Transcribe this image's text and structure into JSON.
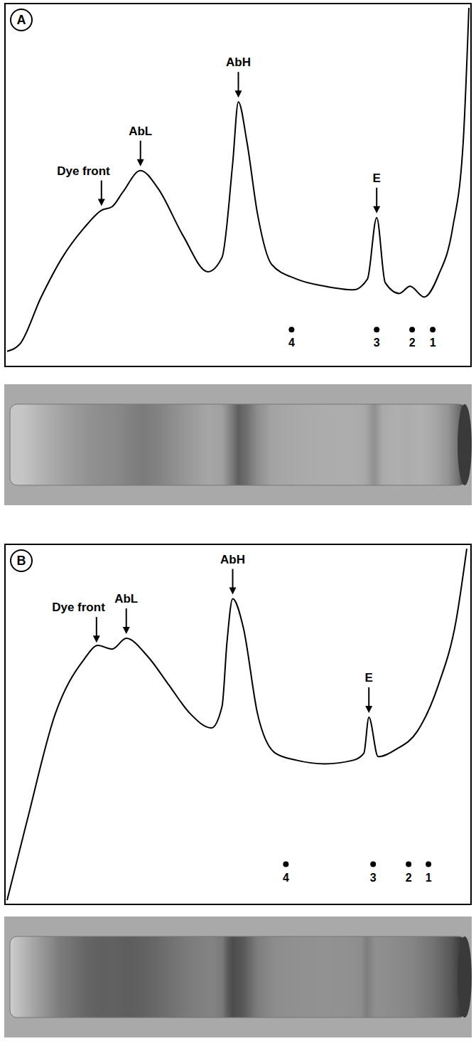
{
  "chart_data": [
    {
      "type": "line",
      "panel": "A",
      "color": "#000000",
      "xlim": [
        0,
        655
      ],
      "ylim": [
        0,
        100
      ],
      "tick_labels": false,
      "x": [
        2,
        20,
        50,
        80,
        110,
        135,
        150,
        165,
        190,
        215,
        250,
        285,
        305,
        320,
        328,
        340,
        355,
        375,
        410,
        450,
        490,
        510,
        523,
        535,
        555,
        570,
        590,
        610,
        630,
        645,
        653
      ],
      "values": [
        4,
        6,
        19,
        30,
        38,
        43,
        44,
        48,
        54,
        49,
        36,
        26,
        30,
        56,
        73,
        62,
        42,
        28,
        24,
        22,
        21,
        24,
        41,
        23,
        20,
        22,
        19,
        25,
        38,
        62,
        99
      ],
      "annotations": [
        {
          "text": "Dye front",
          "x": 135
        },
        {
          "text": "AbL",
          "x": 190
        },
        {
          "text": "AbH",
          "x": 328
        },
        {
          "text": "E",
          "x": 523
        }
      ],
      "points": [
        {
          "text": "4",
          "x": 403,
          "y": 10
        },
        {
          "text": "3",
          "x": 523,
          "y": 10
        },
        {
          "text": "2",
          "x": 573,
          "y": 10
        },
        {
          "text": "1",
          "x": 602,
          "y": 10
        }
      ]
    },
    {
      "type": "line",
      "panel": "B",
      "color": "#000000",
      "xlim": [
        0,
        655
      ],
      "ylim": [
        0,
        100
      ],
      "tick_labels": false,
      "x": [
        2,
        30,
        70,
        110,
        130,
        150,
        170,
        200,
        230,
        260,
        290,
        305,
        312,
        320,
        335,
        355,
        380,
        410,
        450,
        490,
        505,
        512,
        525,
        550,
        580,
        610,
        635,
        650
      ],
      "values": [
        1,
        23,
        53,
        68,
        72,
        71,
        74,
        69,
        61,
        53,
        49,
        55,
        73,
        85,
        77,
        53,
        42,
        40,
        39,
        40,
        42,
        52,
        41,
        43,
        48,
        61,
        79,
        99
      ],
      "annotations": [
        {
          "text": "Dye front",
          "x": 128
        },
        {
          "text": "AbL",
          "x": 170
        },
        {
          "text": "AbH",
          "x": 320
        },
        {
          "text": "E",
          "x": 512
        }
      ],
      "points": [
        {
          "text": "4",
          "x": 395,
          "y": 11
        },
        {
          "text": "3",
          "x": 518,
          "y": 11
        },
        {
          "text": "2",
          "x": 568,
          "y": 11
        },
        {
          "text": "1",
          "x": 596,
          "y": 11
        }
      ]
    }
  ]
}
